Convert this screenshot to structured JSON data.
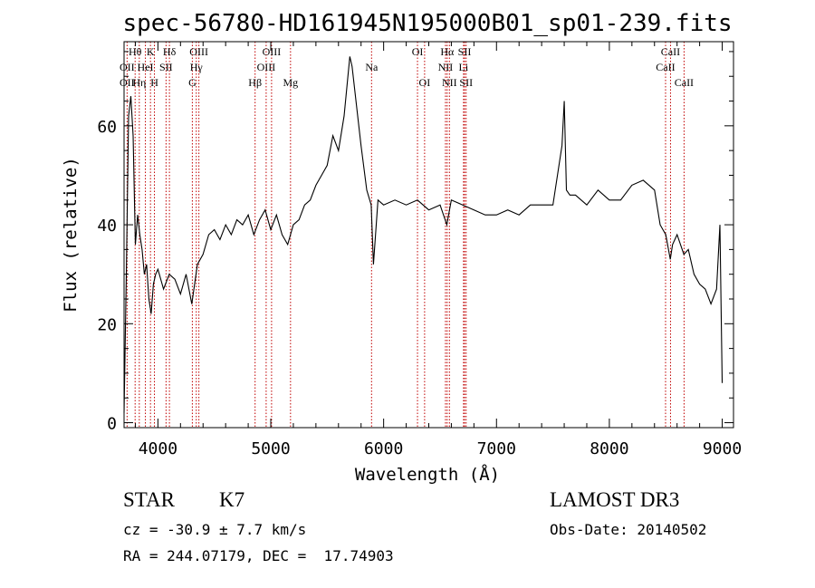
{
  "chart_data": {
    "type": "line",
    "title": "spec-56780-HD161945N195000B01_sp01-239.fits",
    "xlabel": "Wavelength (Å)",
    "ylabel": "Flux (relative)",
    "xlim": [
      3700,
      9100
    ],
    "ylim": [
      -1,
      77
    ],
    "xticks": [
      4000,
      5000,
      6000,
      7000,
      8000,
      9000
    ],
    "yticks": [
      0,
      20,
      40,
      60
    ],
    "grid": false,
    "series": [
      {
        "x": [
          3700,
          3720,
          3740,
          3760,
          3780,
          3800,
          3820,
          3840,
          3860,
          3880,
          3900,
          3920,
          3940,
          3960,
          3980,
          4000,
          4050,
          4100,
          4150,
          4200,
          4250,
          4300,
          4350,
          4400,
          4450,
          4500,
          4550,
          4600,
          4650,
          4700,
          4750,
          4800,
          4850,
          4900,
          4950,
          5000,
          5050,
          5100,
          5150,
          5200,
          5250,
          5300,
          5350,
          5400,
          5450,
          5500,
          5550,
          5600,
          5650,
          5700,
          5720,
          5750,
          5800,
          5850,
          5890,
          5910,
          5950,
          6000,
          6100,
          6200,
          6300,
          6400,
          6500,
          6560,
          6600,
          6700,
          6800,
          6900,
          7000,
          7100,
          7200,
          7300,
          7400,
          7500,
          7580,
          7600,
          7620,
          7650,
          7700,
          7800,
          7900,
          8000,
          8100,
          8200,
          8300,
          8400,
          8450,
          8500,
          8540,
          8560,
          8600,
          8660,
          8700,
          8750,
          8800,
          8850,
          8900,
          8950,
          8980,
          9000
        ],
        "y": [
          2,
          30,
          62,
          66,
          58,
          36,
          42,
          38,
          35,
          30,
          32,
          25,
          22,
          28,
          30,
          31,
          27,
          30,
          29,
          26,
          30,
          24,
          32,
          34,
          38,
          39,
          37,
          40,
          38,
          41,
          40,
          42,
          38,
          41,
          43,
          39,
          42,
          38,
          36,
          40,
          41,
          44,
          45,
          48,
          50,
          52,
          58,
          55,
          62,
          74,
          72,
          66,
          56,
          47,
          44,
          32,
          45,
          44,
          45,
          44,
          45,
          43,
          44,
          40,
          45,
          44,
          43,
          42,
          42,
          43,
          42,
          44,
          44,
          44,
          56,
          65,
          47,
          46,
          46,
          44,
          47,
          45,
          45,
          48,
          49,
          47,
          40,
          38,
          33,
          36,
          38,
          34,
          35,
          30,
          28,
          27,
          24,
          27,
          40,
          8
        ]
      }
    ],
    "spectral_lines": [
      {
        "label": "Hθ",
        "x": 3798,
        "row": 0
      },
      {
        "label": "OII",
        "x": 3727,
        "row": 1
      },
      {
        "label": "OII",
        "x": 3727,
        "row": 2
      },
      {
        "label": "K",
        "x": 3934,
        "row": 0
      },
      {
        "label": "HeI",
        "x": 3889,
        "row": 1
      },
      {
        "label": "Hη",
        "x": 3835,
        "row": 2
      },
      {
        "label": "SII",
        "x": 4072,
        "row": 1
      },
      {
        "label": "H",
        "x": 3969,
        "row": 2
      },
      {
        "label": "Hδ",
        "x": 4102,
        "row": 0
      },
      {
        "label": "OIII",
        "x": 4363,
        "row": 0
      },
      {
        "label": "Hγ",
        "x": 4340,
        "row": 1
      },
      {
        "label": "G",
        "x": 4305,
        "row": 2
      },
      {
        "label": "Hβ",
        "x": 4861,
        "row": 2
      },
      {
        "label": "OIII",
        "x": 5007,
        "row": 0
      },
      {
        "label": "OIII",
        "x": 4959,
        "row": 1
      },
      {
        "label": "Mg",
        "x": 5175,
        "row": 2
      },
      {
        "label": "Na",
        "x": 5893,
        "row": 1
      },
      {
        "label": "OI",
        "x": 6300,
        "row": 0
      },
      {
        "label": "OI",
        "x": 6363,
        "row": 2
      },
      {
        "label": "Hα",
        "x": 6563,
        "row": 0
      },
      {
        "label": "SII",
        "x": 6717,
        "row": 0
      },
      {
        "label": "NII",
        "x": 6548,
        "row": 1
      },
      {
        "label": "Li",
        "x": 6708,
        "row": 1
      },
      {
        "label": "NII",
        "x": 6583,
        "row": 2
      },
      {
        "label": "SII",
        "x": 6731,
        "row": 2
      },
      {
        "label": "CaII",
        "x": 8542,
        "row": 0
      },
      {
        "label": "CaII",
        "x": 8498,
        "row": 1
      },
      {
        "label": "CaII",
        "x": 8662,
        "row": 2
      }
    ]
  },
  "info": {
    "object_class": "STAR",
    "subclass": "K7",
    "redshift": "cz = -30.9 ± 7.7 km/s",
    "coords": "RA = 244.07179, DEC =  17.74903",
    "survey": "LAMOST DR3",
    "obs_date": "Obs-Date: 20140502"
  }
}
